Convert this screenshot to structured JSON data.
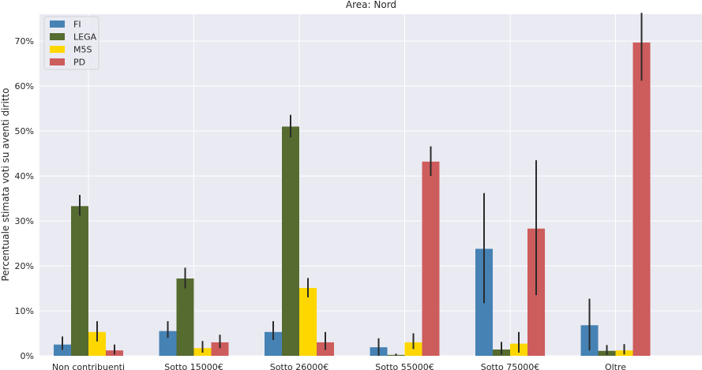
{
  "chart_data": {
    "type": "bar",
    "title": "Area: Nord",
    "xlabel": "",
    "ylabel": "Percentuale stimata voti su aventi diritto",
    "categories": [
      "Non contribuenti",
      "Sotto 15000€",
      "Sotto 26000€",
      "Sotto 55000€",
      "Sotto 75000€",
      "Oltre"
    ],
    "ylim": [
      0,
      0.76
    ],
    "yticks": [
      0,
      0.1,
      0.2,
      0.3,
      0.4,
      0.5,
      0.6,
      0.7
    ],
    "ytick_labels": [
      "0%",
      "10%",
      "20%",
      "30%",
      "40%",
      "50%",
      "60%",
      "70%"
    ],
    "grid": true,
    "legend_position": "top-left",
    "series": [
      {
        "name": "FI",
        "color": "#4682b4",
        "values": [
          0.025,
          0.055,
          0.053,
          0.019,
          0.238,
          0.068
        ],
        "err_low": [
          0.013,
          0.04,
          0.035,
          0.0,
          0.117,
          0.012
        ],
        "err_high": [
          0.043,
          0.077,
          0.077,
          0.039,
          0.362,
          0.127
        ]
      },
      {
        "name": "LEGA",
        "color": "#556b2f",
        "values": [
          0.333,
          0.172,
          0.51,
          0.002,
          0.014,
          0.011
        ],
        "err_low": [
          0.312,
          0.15,
          0.486,
          0.0,
          0.003,
          0.002
        ],
        "err_high": [
          0.358,
          0.196,
          0.536,
          0.005,
          0.031,
          0.024
        ]
      },
      {
        "name": "M5S",
        "color": "#ffd700",
        "values": [
          0.053,
          0.017,
          0.151,
          0.03,
          0.027,
          0.012
        ],
        "err_low": [
          0.032,
          0.007,
          0.13,
          0.015,
          0.007,
          0.003
        ],
        "err_high": [
          0.077,
          0.033,
          0.173,
          0.05,
          0.053,
          0.026
        ]
      },
      {
        "name": "PD",
        "color": "#cd5c5c",
        "values": [
          0.012,
          0.03,
          0.03,
          0.432,
          0.283,
          0.697
        ],
        "err_low": [
          0.003,
          0.017,
          0.013,
          0.4,
          0.135,
          0.612
        ],
        "err_high": [
          0.025,
          0.047,
          0.053,
          0.466,
          0.435,
          0.763
        ]
      }
    ]
  }
}
